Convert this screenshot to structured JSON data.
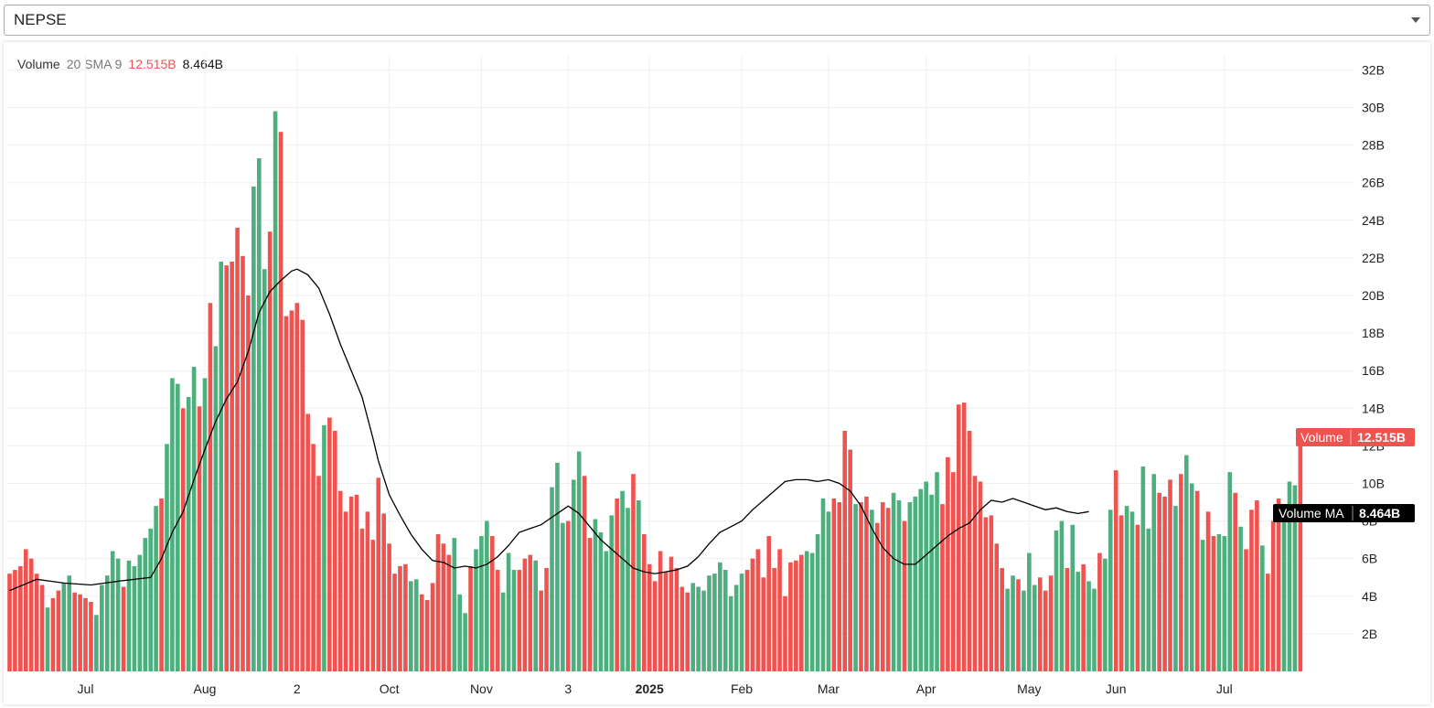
{
  "selector": {
    "value": "NEPSE"
  },
  "legend": {
    "name": "Volume",
    "params": "20 SMA 9",
    "volume_value": "12.515B",
    "ma_value": "8.464B"
  },
  "badges": {
    "volume": {
      "label": "Volume",
      "value": "12.515B",
      "color": "#ef5350"
    },
    "ma": {
      "label": "Volume MA",
      "value": "8.464B",
      "color": "#000000"
    }
  },
  "colors": {
    "up": "#4caf7d",
    "down": "#ef5350",
    "ma_line": "#000000",
    "grid": "#f0f0f0"
  },
  "chart_data": {
    "type": "bar",
    "title": "",
    "series_names": [
      "Volume",
      "Volume MA"
    ],
    "y_unit": "B",
    "ylim": [
      0,
      33
    ],
    "y_ticks": [
      "2B",
      "4B",
      "6B",
      "8B",
      "10B",
      "12B",
      "14B",
      "16B",
      "18B",
      "20B",
      "22B",
      "24B",
      "26B",
      "28B",
      "30B",
      "32B"
    ],
    "x_tick_labels": [
      "Jul",
      "Aug",
      "2",
      "Oct",
      "Nov",
      "3",
      "2025",
      "Feb",
      "Mar",
      "Apr",
      "May",
      "Jun",
      "Jul"
    ],
    "x_tick_bar_index": [
      14,
      36,
      53,
      70,
      87,
      103,
      118,
      135,
      151,
      169,
      188,
      204,
      224
    ],
    "grid": true,
    "volume": [
      5.2,
      5.4,
      5.6,
      6.5,
      6.0,
      5.2,
      4.6,
      3.4,
      3.9,
      4.3,
      4.7,
      5.1,
      4.2,
      4.1,
      3.9,
      3.7,
      3.0,
      4.6,
      5.1,
      6.4,
      6.0,
      4.5,
      5.9,
      5.6,
      6.2,
      7.1,
      7.6,
      8.8,
      9.2,
      12.1,
      15.6,
      15.3,
      14.0,
      14.6,
      16.2,
      14.1,
      15.6,
      19.6,
      17.3,
      21.8,
      21.6,
      21.8,
      23.6,
      22.1,
      20.0,
      25.8,
      27.3,
      21.4,
      23.4,
      29.8,
      28.7,
      18.9,
      19.2,
      19.6,
      18.7,
      13.7,
      12.1,
      10.4,
      13.1,
      13.5,
      12.8,
      9.6,
      8.5,
      9.3,
      9.4,
      7.6,
      8.5,
      7.0,
      10.3,
      8.4,
      6.8,
      5.2,
      5.6,
      5.7,
      4.8,
      4.9,
      4.1,
      3.8,
      4.7,
      7.3,
      6.8,
      6.2,
      7.1,
      4.1,
      3.1,
      5.6,
      6.5,
      7.2,
      8.0,
      7.2,
      5.4,
      4.2,
      6.3,
      5.4,
      5.4,
      6.0,
      6.2,
      5.9,
      4.3,
      5.5,
      9.8,
      11.1,
      7.9,
      8.0,
      10.2,
      11.7,
      10.4,
      7.1,
      8.1,
      7.4,
      6.4,
      8.3,
      9.2,
      9.6,
      8.7,
      10.5,
      9.1,
      7.3,
      5.7,
      4.8,
      6.4,
      5.3,
      6.1,
      5.5,
      4.5,
      4.2,
      4.7,
      4.5,
      4.3,
      5.1,
      5.2,
      5.8,
      5.4,
      4.0,
      4.6,
      5.2,
      5.4,
      6.0,
      6.5,
      5.0,
      7.2,
      5.5,
      6.5,
      4.0,
      5.8,
      5.9,
      6.2,
      6.4,
      6.3,
      7.3,
      9.2,
      8.5,
      9.2,
      9.0,
      12.8,
      11.8,
      8.9,
      9.0,
      9.3,
      8.6,
      7.9,
      9.0,
      8.7,
      9.5,
      9.1,
      8.0,
      9.0,
      9.3,
      9.7,
      10.1,
      9.4,
      10.6,
      8.9,
      11.4,
      10.6,
      14.2,
      14.3,
      12.8,
      10.4,
      10.1,
      8.2,
      8.3,
      6.8,
      5.5,
      4.4,
      5.1,
      4.9,
      4.3,
      6.3,
      4.6,
      5.0,
      4.3,
      5.1,
      7.5,
      8.0,
      5.5,
      7.8,
      5.3,
      5.7,
      4.8,
      4.4,
      6.3,
      6.0,
      8.6,
      10.7,
      8.3,
      8.8,
      8.5,
      7.8,
      10.9,
      7.6,
      10.5,
      9.5,
      9.3,
      10.2,
      8.8,
      10.5,
      11.5,
      10.0,
      9.6,
      7.0,
      8.5,
      7.2,
      7.3,
      7.2,
      10.6,
      9.5,
      7.7,
      6.5,
      8.6,
      9.1,
      6.7,
      5.2,
      8.0,
      9.2,
      8.9,
      10.1,
      9.9,
      12.5
    ],
    "up_down": [
      "d",
      "d",
      "d",
      "d",
      "d",
      "d",
      "d",
      "u",
      "d",
      "d",
      "u",
      "u",
      "d",
      "d",
      "d",
      "d",
      "u",
      "u",
      "u",
      "u",
      "u",
      "d",
      "u",
      "u",
      "u",
      "u",
      "u",
      "u",
      "d",
      "u",
      "u",
      "u",
      "d",
      "u",
      "u",
      "d",
      "u",
      "d",
      "u",
      "u",
      "d",
      "d",
      "d",
      "d",
      "d",
      "u",
      "u",
      "u",
      "d",
      "u",
      "d",
      "d",
      "d",
      "d",
      "d",
      "d",
      "d",
      "d",
      "u",
      "d",
      "d",
      "d",
      "d",
      "d",
      "d",
      "d",
      "d",
      "d",
      "d",
      "d",
      "d",
      "d",
      "d",
      "d",
      "u",
      "u",
      "d",
      "d",
      "d",
      "d",
      "d",
      "d",
      "u",
      "u",
      "u",
      "d",
      "u",
      "u",
      "u",
      "d",
      "d",
      "u",
      "u",
      "u",
      "d",
      "d",
      "d",
      "u",
      "d",
      "d",
      "u",
      "u",
      "u",
      "d",
      "u",
      "u",
      "d",
      "d",
      "u",
      "u",
      "u",
      "u",
      "d",
      "u",
      "u",
      "d",
      "u",
      "d",
      "d",
      "d",
      "d",
      "d",
      "d",
      "d",
      "d",
      "d",
      "u",
      "u",
      "u",
      "u",
      "u",
      "u",
      "u",
      "u",
      "u",
      "u",
      "d",
      "d",
      "d",
      "d",
      "d",
      "d",
      "d",
      "d",
      "d",
      "d",
      "d",
      "u",
      "u",
      "u",
      "u",
      "u",
      "d",
      "d",
      "d",
      "d",
      "u",
      "d",
      "d",
      "u",
      "d",
      "d",
      "d",
      "u",
      "u",
      "d",
      "u",
      "u",
      "u",
      "u",
      "u",
      "u",
      "d",
      "d",
      "d",
      "d",
      "d",
      "d",
      "d",
      "d",
      "d",
      "d",
      "d",
      "d",
      "u",
      "u",
      "d",
      "u",
      "u",
      "u",
      "d",
      "d",
      "d",
      "u",
      "u",
      "d",
      "u",
      "u",
      "d",
      "u",
      "u",
      "d",
      "u",
      "u",
      "d",
      "d",
      "u",
      "u",
      "d",
      "u",
      "u",
      "u",
      "d",
      "d",
      "d",
      "u",
      "d",
      "u",
      "u",
      "d",
      "u",
      "d",
      "d",
      "u",
      "u",
      "u",
      "d",
      "u",
      "d",
      "d",
      "d",
      "u",
      "d",
      "d",
      "d",
      "u",
      "u",
      "u",
      "d",
      "d",
      "d",
      "d",
      "d",
      "u",
      "u",
      "d",
      "d"
    ],
    "ma_points": [
      [
        0,
        4.3
      ],
      [
        5,
        4.9
      ],
      [
        10,
        4.7
      ],
      [
        15,
        4.6
      ],
      [
        20,
        4.8
      ],
      [
        26,
        5.0
      ],
      [
        28,
        6.0
      ],
      [
        30,
        7.4
      ],
      [
        32,
        8.5
      ],
      [
        34,
        10.2
      ],
      [
        36,
        11.8
      ],
      [
        38,
        13.3
      ],
      [
        40,
        14.5
      ],
      [
        42,
        15.4
      ],
      [
        44,
        17.0
      ],
      [
        46,
        19.1
      ],
      [
        48,
        20.2
      ],
      [
        50,
        20.8
      ],
      [
        52,
        21.3
      ],
      [
        53,
        21.4
      ],
      [
        55,
        21.1
      ],
      [
        57,
        20.4
      ],
      [
        59,
        19.0
      ],
      [
        61,
        17.4
      ],
      [
        63,
        16.0
      ],
      [
        65,
        14.6
      ],
      [
        67,
        12.4
      ],
      [
        68,
        11.2
      ],
      [
        70,
        9.4
      ],
      [
        72,
        8.3
      ],
      [
        74,
        7.3
      ],
      [
        76,
        6.5
      ],
      [
        78,
        5.9
      ],
      [
        80,
        5.8
      ],
      [
        82,
        5.5
      ],
      [
        84,
        5.6
      ],
      [
        86,
        5.5
      ],
      [
        88,
        5.7
      ],
      [
        90,
        6.1
      ],
      [
        92,
        6.7
      ],
      [
        94,
        7.4
      ],
      [
        96,
        7.6
      ],
      [
        98,
        7.8
      ],
      [
        100,
        8.2
      ],
      [
        102,
        8.6
      ],
      [
        103,
        8.8
      ],
      [
        105,
        8.4
      ],
      [
        107,
        7.7
      ],
      [
        109,
        7.0
      ],
      [
        111,
        6.5
      ],
      [
        113,
        6.0
      ],
      [
        115,
        5.5
      ],
      [
        117,
        5.3
      ],
      [
        119,
        5.2
      ],
      [
        121,
        5.3
      ],
      [
        123,
        5.4
      ],
      [
        125,
        5.6
      ],
      [
        127,
        6.1
      ],
      [
        129,
        6.8
      ],
      [
        131,
        7.4
      ],
      [
        133,
        7.7
      ],
      [
        135,
        8.0
      ],
      [
        137,
        8.6
      ],
      [
        139,
        9.1
      ],
      [
        141,
        9.6
      ],
      [
        143,
        10.1
      ],
      [
        145,
        10.2
      ],
      [
        147,
        10.2
      ],
      [
        149,
        10.1
      ],
      [
        151,
        10.2
      ],
      [
        153,
        10.0
      ],
      [
        155,
        9.6
      ],
      [
        157,
        8.8
      ],
      [
        159,
        7.6
      ],
      [
        161,
        6.6
      ],
      [
        163,
        6.0
      ],
      [
        165,
        5.7
      ],
      [
        167,
        5.7
      ],
      [
        169,
        6.2
      ],
      [
        171,
        6.7
      ],
      [
        173,
        7.2
      ],
      [
        175,
        7.6
      ],
      [
        177,
        7.9
      ],
      [
        179,
        8.6
      ],
      [
        181,
        9.1
      ],
      [
        183,
        9.0
      ],
      [
        185,
        9.2
      ],
      [
        187,
        9.0
      ],
      [
        189,
        8.8
      ],
      [
        191,
        8.6
      ],
      [
        193,
        8.7
      ],
      [
        195,
        8.5
      ],
      [
        197,
        8.4
      ],
      [
        199,
        8.5
      ]
    ]
  }
}
